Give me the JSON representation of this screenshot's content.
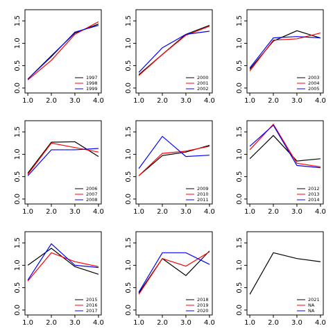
{
  "chart_data": [
    {
      "type": "line",
      "x": [
        1,
        2,
        3,
        4
      ],
      "xlim": [
        0.88,
        4.12
      ],
      "ylim": [
        -0.11,
        1.75
      ],
      "xticks": [
        {
          "value": 1,
          "label": "1.0"
        },
        {
          "value": 2,
          "label": "2.0"
        },
        {
          "value": 3,
          "label": "3.0"
        },
        {
          "value": 4,
          "label": "4.0"
        }
      ],
      "yticks": [
        {
          "value": 0,
          "label": "0.0"
        },
        0.5,
        {
          "value": 1,
          "label": "1.0"
        },
        1.5
      ],
      "legend": "bottomright",
      "series": [
        {
          "name": "1997",
          "color": "#000000",
          "values": [
            0.2,
            0.72,
            1.23,
            1.43
          ]
        },
        {
          "name": "1998",
          "color": "#ff0000",
          "values": [
            0.18,
            0.62,
            1.2,
            1.48
          ]
        },
        {
          "name": "1999",
          "color": "#0000ff",
          "values": [
            0.2,
            0.7,
            1.25,
            1.4
          ]
        }
      ]
    },
    {
      "type": "line",
      "x": [
        1,
        2,
        3,
        4
      ],
      "xlim": [
        0.88,
        4.12
      ],
      "ylim": [
        -0.11,
        1.75
      ],
      "xticks": [
        {
          "value": 1,
          "label": "1.0"
        },
        {
          "value": 2,
          "label": "2.0"
        },
        {
          "value": 3,
          "label": "3.0"
        },
        {
          "value": 4,
          "label": "4.0"
        }
      ],
      "yticks": [
        {
          "value": 0,
          "label": "0.0"
        },
        0.5,
        {
          "value": 1,
          "label": "1.0"
        },
        1.5
      ],
      "legend": "bottomright",
      "series": [
        {
          "name": "2000",
          "color": "#000000",
          "values": [
            0.3,
            0.75,
            1.2,
            1.4
          ]
        },
        {
          "name": "2001",
          "color": "#ff0000",
          "values": [
            0.28,
            0.75,
            1.18,
            1.38
          ]
        },
        {
          "name": "2002",
          "color": "#0000ff",
          "values": [
            0.35,
            0.9,
            1.2,
            1.27
          ]
        }
      ]
    },
    {
      "type": "line",
      "x": [
        1,
        2,
        3,
        4
      ],
      "xlim": [
        0.88,
        4.12
      ],
      "ylim": [
        -0.11,
        1.75
      ],
      "xticks": [
        {
          "value": 1,
          "label": "1.0"
        },
        {
          "value": 2,
          "label": "2.0"
        },
        {
          "value": 3,
          "label": "3.0"
        },
        {
          "value": 4,
          "label": "4.0"
        }
      ],
      "yticks": [
        {
          "value": 0,
          "label": "0.0"
        },
        0.5,
        {
          "value": 1,
          "label": "1.0"
        },
        1.5
      ],
      "legend": "bottomright",
      "series": [
        {
          "name": "2003",
          "color": "#000000",
          "values": [
            0.42,
            1.05,
            1.28,
            1.12
          ]
        },
        {
          "name": "2004",
          "color": "#ff0000",
          "values": [
            0.38,
            1.07,
            1.1,
            1.23
          ]
        },
        {
          "name": "2005",
          "color": "#0000ff",
          "values": [
            0.45,
            1.12,
            1.15,
            1.12
          ]
        }
      ]
    },
    {
      "type": "line",
      "x": [
        1,
        2,
        3,
        4
      ],
      "xlim": [
        0.88,
        4.12
      ],
      "ylim": [
        -0.11,
        1.75
      ],
      "xticks": [
        {
          "value": 1,
          "label": "1.0"
        },
        {
          "value": 2,
          "label": "2.0"
        },
        {
          "value": 3,
          "label": "3.0"
        },
        {
          "value": 4,
          "label": "4.0"
        }
      ],
      "yticks": [
        {
          "value": 0,
          "label": "0.0"
        },
        0.5,
        {
          "value": 1,
          "label": "1.0"
        },
        1.5
      ],
      "legend": "bottomright",
      "series": [
        {
          "name": "2006",
          "color": "#000000",
          "values": [
            0.58,
            1.27,
            1.28,
            0.95
          ]
        },
        {
          "name": "2007",
          "color": "#ff0000",
          "values": [
            0.55,
            1.25,
            1.15,
            1.05
          ]
        },
        {
          "name": "2008",
          "color": "#0000ff",
          "values": [
            0.52,
            1.1,
            1.1,
            1.13
          ]
        }
      ]
    },
    {
      "type": "line",
      "x": [
        1,
        2,
        3,
        4
      ],
      "xlim": [
        0.88,
        4.12
      ],
      "ylim": [
        -0.11,
        1.75
      ],
      "xticks": [
        {
          "value": 1,
          "label": "1.0"
        },
        {
          "value": 2,
          "label": "2.0"
        },
        {
          "value": 3,
          "label": "3.0"
        },
        {
          "value": 4,
          "label": "4.0"
        }
      ],
      "yticks": [
        {
          "value": 0,
          "label": "0.0"
        },
        0.5,
        {
          "value": 1,
          "label": "1.0"
        },
        1.5
      ],
      "legend": "bottomright",
      "series": [
        {
          "name": "2009",
          "color": "#000000",
          "values": [
            0.52,
            0.97,
            1.05,
            1.2
          ]
        },
        {
          "name": "2010",
          "color": "#ff0000",
          "values": [
            0.52,
            1.02,
            1.07,
            1.18
          ]
        },
        {
          "name": "2011",
          "color": "#0000ff",
          "values": [
            0.68,
            1.4,
            0.95,
            0.98
          ]
        }
      ]
    },
    {
      "type": "line",
      "x": [
        1,
        2,
        3,
        4
      ],
      "xlim": [
        0.88,
        4.12
      ],
      "ylim": [
        -0.11,
        1.75
      ],
      "xticks": [
        {
          "value": 1,
          "label": "1.0"
        },
        {
          "value": 2,
          "label": "2.0"
        },
        {
          "value": 3,
          "label": "3.0"
        },
        {
          "value": 4,
          "label": "4.0"
        }
      ],
      "yticks": [
        {
          "value": 0,
          "label": "0.0"
        },
        0.5,
        {
          "value": 1,
          "label": "1.0"
        },
        1.5
      ],
      "legend": "bottomright",
      "series": [
        {
          "name": "2012",
          "color": "#000000",
          "values": [
            0.9,
            1.42,
            0.85,
            0.9
          ]
        },
        {
          "name": "2013",
          "color": "#ff0000",
          "values": [
            1.1,
            1.67,
            0.8,
            0.72
          ]
        },
        {
          "name": "2014",
          "color": "#0000ff",
          "values": [
            1.18,
            1.65,
            0.75,
            0.7
          ]
        }
      ]
    },
    {
      "type": "line",
      "x": [
        1,
        2,
        3,
        4
      ],
      "xlim": [
        0.88,
        4.12
      ],
      "ylim": [
        -0.11,
        1.75
      ],
      "xticks": [
        {
          "value": 1,
          "label": "1.0"
        },
        {
          "value": 2,
          "label": "2.0"
        },
        {
          "value": 3,
          "label": "3.0"
        },
        {
          "value": 4,
          "label": "4.0"
        }
      ],
      "yticks": [
        {
          "value": 0,
          "label": "0.0"
        },
        0.5,
        {
          "value": 1,
          "label": "1.0"
        },
        1.5
      ],
      "legend": "bottomright",
      "series": [
        {
          "name": "2015",
          "color": "#000000",
          "values": [
            1.0,
            1.38,
            0.97,
            0.8
          ]
        },
        {
          "name": "2016",
          "color": "#ff0000",
          "values": [
            0.65,
            1.28,
            1.08,
            0.97
          ]
        },
        {
          "name": "2017",
          "color": "#0000ff",
          "values": [
            0.67,
            1.48,
            1.0,
            0.95
          ]
        }
      ]
    },
    {
      "type": "line",
      "x": [
        1,
        2,
        3,
        4
      ],
      "xlim": [
        0.88,
        4.12
      ],
      "ylim": [
        -0.11,
        1.75
      ],
      "xticks": [
        {
          "value": 1,
          "label": "1.0"
        },
        {
          "value": 2,
          "label": "2.0"
        },
        {
          "value": 3,
          "label": "3.0"
        },
        {
          "value": 4,
          "label": "4.0"
        }
      ],
      "yticks": [
        {
          "value": 0,
          "label": "0.0"
        },
        0.5,
        {
          "value": 1,
          "label": "1.0"
        },
        1.5
      ],
      "legend": "bottomright",
      "series": [
        {
          "name": "2018",
          "color": "#000000",
          "values": [
            0.38,
            1.15,
            0.77,
            1.32
          ]
        },
        {
          "name": "2019",
          "color": "#ff0000",
          "values": [
            0.35,
            1.15,
            0.98,
            1.3
          ]
        },
        {
          "name": "2020",
          "color": "#0000ff",
          "values": [
            0.4,
            1.28,
            1.28,
            1.02
          ]
        }
      ]
    },
    {
      "type": "line",
      "x": [
        1,
        2,
        3,
        4
      ],
      "xlim": [
        0.88,
        4.12
      ],
      "ylim": [
        -0.11,
        1.75
      ],
      "xticks": [
        {
          "value": 1,
          "label": "1.0"
        },
        {
          "value": 2,
          "label": "2.0"
        },
        {
          "value": 3,
          "label": "3.0"
        },
        {
          "value": 4,
          "label": "4.0"
        }
      ],
      "yticks": [
        {
          "value": 0,
          "label": "0.0"
        },
        0.5,
        {
          "value": 1,
          "label": "1.0"
        },
        1.5
      ],
      "legend": "bottomright",
      "series": [
        {
          "name": "2021",
          "color": "#000000",
          "values": [
            0.35,
            1.28,
            1.15,
            1.08
          ]
        },
        {
          "name": "NA",
          "color": "#ff0000",
          "values": [
            null,
            null,
            null,
            null
          ]
        },
        {
          "name": "NA",
          "color": "#0000ff",
          "values": [
            null,
            null,
            null,
            null
          ]
        }
      ]
    }
  ]
}
